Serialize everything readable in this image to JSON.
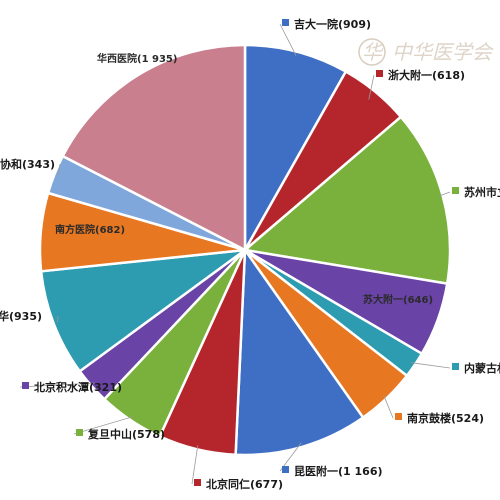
{
  "watermark": {
    "text": "中华医学会",
    "seal_text": "华"
  },
  "colors": {
    "blue": "#3f6fc4",
    "darkred": "#b5262c",
    "green": "#7ab03c",
    "purple": "#6a43a6",
    "teal": "#2d9bb0",
    "orange": "#e87722",
    "lightblue": "#7fa7dc",
    "pink": "#c97f8e"
  },
  "chart_data": {
    "type": "pie",
    "title": "",
    "slices": [
      {
        "label": "吉大一院(909)",
        "value": 909,
        "color": "blue"
      },
      {
        "label": "浙大附一(618)",
        "value": 618,
        "color": "darkred"
      },
      {
        "label": "苏州市立",
        "value": 1540,
        "color": "green"
      },
      {
        "label": "苏大附一(646)",
        "value": 646,
        "color": "purple"
      },
      {
        "label": "内蒙古林",
        "value": 230,
        "color": "teal"
      },
      {
        "label": "南京鼓楼(524)",
        "value": 524,
        "color": "orange"
      },
      {
        "label": "昆医附一(1 166)",
        "value": 1166,
        "color": "blue"
      },
      {
        "label": "北京同仁(677)",
        "value": 677,
        "color": "darkred"
      },
      {
        "label": "复旦中山(578)",
        "value": 578,
        "color": "green"
      },
      {
        "label": "北京积水潭(321)",
        "value": 321,
        "color": "purple"
      },
      {
        "label": "华(935)",
        "value": 935,
        "color": "teal"
      },
      {
        "label": "南方医院(682)",
        "value": 682,
        "color": "orange"
      },
      {
        "label": "协和(343)",
        "value": 343,
        "color": "lightblue"
      },
      {
        "label": "华西医院(1 935)",
        "value": 1935,
        "color": "pink"
      }
    ]
  }
}
